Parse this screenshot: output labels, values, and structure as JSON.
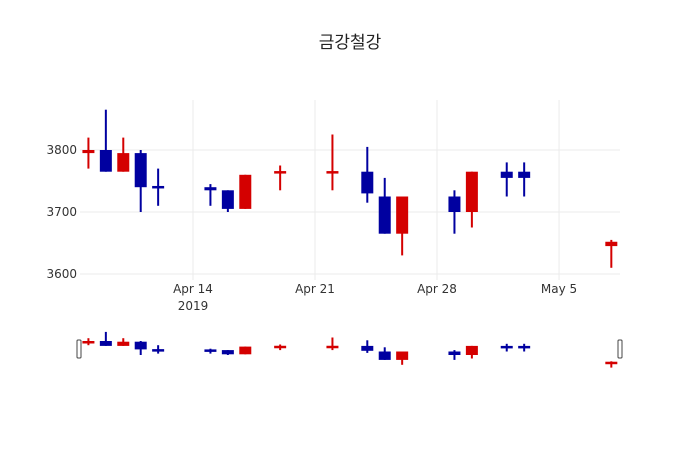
{
  "chart_data": {
    "type": "candlestick",
    "title": "금강철강",
    "xlabel": "",
    "ylabel": "",
    "ylim": [
      3580,
      3880
    ],
    "yticks": [
      3600,
      3700,
      3800
    ],
    "xticks": [
      {
        "date": "2019-04-14",
        "label": "Apr 14",
        "sublabel": "2019"
      },
      {
        "date": "2019-04-21",
        "label": "Apr 21",
        "sublabel": ""
      },
      {
        "date": "2019-04-28",
        "label": "Apr 28",
        "sublabel": ""
      },
      {
        "date": "2019-05-05",
        "label": "May 5",
        "sublabel": ""
      }
    ],
    "increasing_color": "#d40000",
    "decreasing_color": "#0000a0",
    "grid": true,
    "rangeslider": true,
    "candles": [
      {
        "date": "2019-04-08",
        "open": 3795,
        "high": 3820,
        "low": 3770,
        "close": 3800
      },
      {
        "date": "2019-04-09",
        "open": 3800,
        "high": 3865,
        "low": 3765,
        "close": 3765
      },
      {
        "date": "2019-04-10",
        "open": 3765,
        "high": 3820,
        "low": 3765,
        "close": 3795
      },
      {
        "date": "2019-04-11",
        "open": 3795,
        "high": 3800,
        "low": 3700,
        "close": 3740
      },
      {
        "date": "2019-04-12",
        "open": 3742,
        "high": 3770,
        "low": 3710,
        "close": 3740
      },
      {
        "date": "2019-04-15",
        "open": 3740,
        "high": 3745,
        "low": 3710,
        "close": 3735
      },
      {
        "date": "2019-04-16",
        "open": 3735,
        "high": 3735,
        "low": 3700,
        "close": 3705
      },
      {
        "date": "2019-04-17",
        "open": 3705,
        "high": 3760,
        "low": 3705,
        "close": 3760
      },
      {
        "date": "2019-04-19",
        "open": 3764,
        "high": 3775,
        "low": 3735,
        "close": 3766
      },
      {
        "date": "2019-04-22",
        "open": 3764,
        "high": 3825,
        "low": 3735,
        "close": 3766
      },
      {
        "date": "2019-04-24",
        "open": 3765,
        "high": 3805,
        "low": 3715,
        "close": 3730
      },
      {
        "date": "2019-04-25",
        "open": 3725,
        "high": 3755,
        "low": 3665,
        "close": 3665
      },
      {
        "date": "2019-04-26",
        "open": 3665,
        "high": 3725,
        "low": 3630,
        "close": 3725
      },
      {
        "date": "2019-04-29",
        "open": 3725,
        "high": 3735,
        "low": 3665,
        "close": 3700
      },
      {
        "date": "2019-04-30",
        "open": 3700,
        "high": 3765,
        "low": 3675,
        "close": 3765
      },
      {
        "date": "2019-05-02",
        "open": 3765,
        "high": 3780,
        "low": 3725,
        "close": 3755
      },
      {
        "date": "2019-05-03",
        "open": 3765,
        "high": 3780,
        "low": 3725,
        "close": 3755
      },
      {
        "date": "2019-05-08",
        "open": 3645,
        "high": 3655,
        "low": 3610,
        "close": 3652
      }
    ]
  }
}
